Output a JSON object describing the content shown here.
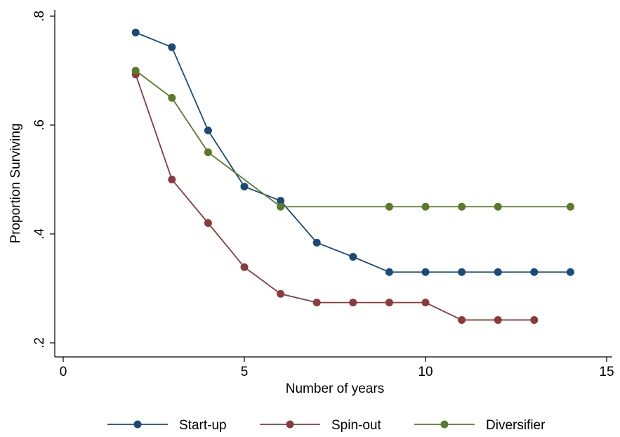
{
  "chart_data": {
    "type": "line",
    "title": "",
    "xlabel": "Number of years",
    "ylabel": "Proportion Surviving",
    "xlim": [
      0,
      15
    ],
    "ylim": [
      0.2,
      0.8
    ],
    "x_ticks": [
      0,
      5,
      10,
      15
    ],
    "x_tick_labels": [
      "0",
      "5",
      "10",
      "15"
    ],
    "y_ticks": [
      0.2,
      0.4,
      0.6,
      0.8
    ],
    "y_tick_labels": [
      ".2",
      ".4",
      ".6",
      ".8"
    ],
    "grid": false,
    "legend_position": "bottom",
    "series": [
      {
        "name": "Start-up",
        "color": "#1a4a7a",
        "x": [
          2,
          3,
          4,
          5,
          6,
          7,
          8,
          9,
          10,
          11,
          12,
          13,
          14
        ],
        "y": [
          0.77,
          0.743,
          0.59,
          0.487,
          0.461,
          0.384,
          0.358,
          0.33,
          0.33,
          0.33,
          0.33,
          0.33,
          0.33
        ]
      },
      {
        "name": "Spin-out",
        "color": "#8c3a3e",
        "x": [
          2,
          3,
          4,
          5,
          6,
          7,
          8,
          9,
          10,
          11,
          12,
          13
        ],
        "y": [
          0.693,
          0.5,
          0.42,
          0.339,
          0.29,
          0.274,
          0.274,
          0.274,
          0.274,
          0.242,
          0.242,
          0.242
        ]
      },
      {
        "name": "Diversifier",
        "color": "#5a7a2a",
        "x": [
          2,
          3,
          4,
          6,
          9,
          10,
          11,
          12,
          14
        ],
        "y": [
          0.7,
          0.65,
          0.55,
          0.45,
          0.45,
          0.45,
          0.45,
          0.45,
          0.45
        ]
      }
    ]
  }
}
